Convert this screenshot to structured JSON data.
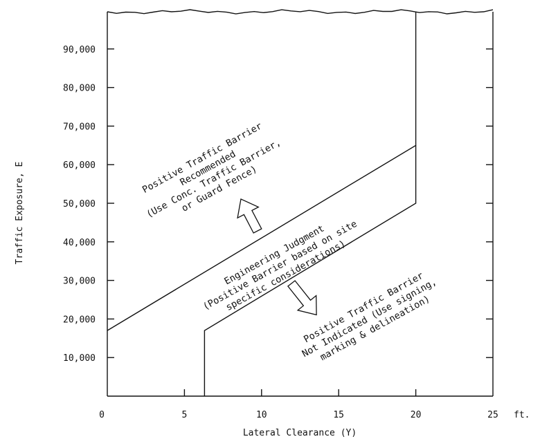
{
  "chart_data": {
    "type": "line",
    "title": "",
    "xlabel": "Lateral Clearance (Y)",
    "ylabel": "Traffic Exposure, E",
    "x_unit": "ft.",
    "xlim": [
      0,
      25
    ],
    "ylim": [
      0,
      100000
    ],
    "x_ticks": [
      "0",
      "5",
      "10",
      "15",
      "20",
      "25"
    ],
    "y_ticks": [
      "10,000",
      "20,000",
      "30,000",
      "40,000",
      "50,000",
      "60,000",
      "70,000",
      "80,000",
      "90,000"
    ],
    "grid": false,
    "series": [
      {
        "x": [
          0,
          20,
          20
        ],
        "y": [
          17000,
          65000,
          100000
        ]
      },
      {
        "x": [
          6.3,
          6.3,
          20,
          20
        ],
        "y": [
          0,
          17000,
          50000,
          65000
        ]
      }
    ],
    "regions": [
      {
        "lines": [
          "Positive Traffic Barrier",
          "Recommended",
          "(Use Conc. Traffic Barrier,",
          "or Guard Fence)"
        ]
      },
      {
        "lines": [
          "Engineering Judgment",
          "(Positive Barrier based on site",
          "specific considerations)"
        ]
      },
      {
        "lines": [
          "Positive Traffic Barrier",
          "Not Indicated (Use signing,",
          "marking & delineation)"
        ]
      }
    ]
  }
}
